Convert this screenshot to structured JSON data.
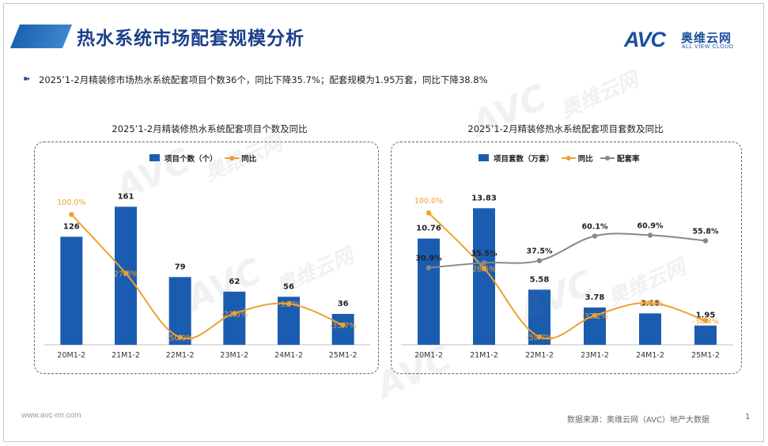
{
  "header": {
    "title": "热水系统市场配套规模分析",
    "summary": "2025’1-2月精装修市场热水系统配套项目个数36个，同比下降35.7%；配套规模为1.95万套，同比下降38.8%",
    "bullet_icon": "double-arrow-icon"
  },
  "logo": {
    "mark": "AVC",
    "cn": "奥维云网",
    "en": "ALL VIEW CLOUD"
  },
  "watermark": {
    "mark": "AVC",
    "cn": "奥维云网",
    "en": "ALL VIEW CLOUD"
  },
  "footer": {
    "website": "www.avc-mr.com",
    "source": "数据来源：奥维云网（AVC）地产大数据",
    "page": "1"
  },
  "colors": {
    "bar": "#1a5db0",
    "yoy": "#f0a030",
    "ratio": "#888888",
    "title": "#1a3f8a",
    "panel_border": "#4a6b8a"
  },
  "chart_data": [
    {
      "type": "bar",
      "title": "2025’1-2月精装修热水系统配套项目个数及同比",
      "categories": [
        "20M1-2",
        "21M1-2",
        "22M1-2",
        "23M1-2",
        "24M1-2",
        "25M1-2"
      ],
      "series": [
        {
          "name": "项目个数（个）",
          "kind": "bar",
          "values": [
            126,
            161,
            79,
            62,
            56,
            36
          ],
          "labels": [
            "126",
            "161",
            "79",
            "62",
            "56",
            "36"
          ]
        },
        {
          "name": "同比",
          "kind": "line",
          "values": [
            100.0,
            27.8,
            -50.9,
            -21.5,
            -9.7,
            -35.7
          ],
          "labels": [
            "100.0%",
            "27.8%",
            "-50.9%",
            "-21.5%",
            "-9.7%",
            "-35.7%"
          ]
        }
      ],
      "bar_ylim": [
        0,
        190
      ],
      "line_ylim": [
        -60,
        140
      ],
      "legend_position": "top"
    },
    {
      "type": "bar",
      "title": "2025’1-2月精装修热水系统配套项目套数及同比",
      "categories": [
        "20M1-2",
        "21M1-2",
        "22M1-2",
        "23M1-2",
        "24M1-2",
        "25M1-2"
      ],
      "series": [
        {
          "name": "项目套数（万套）",
          "kind": "bar",
          "values": [
            10.76,
            13.83,
            5.58,
            3.78,
            3.18,
            1.95
          ],
          "labels": [
            "10.76",
            "13.83",
            "5.58",
            "3.78",
            "3.18",
            "1.95"
          ]
        },
        {
          "name": "同比",
          "kind": "line",
          "values": [
            100.0,
            28.5,
            -59.7,
            -32.2,
            -16.0,
            -38.8
          ],
          "labels": [
            "100.0%",
            "28.5%",
            "-59.7%",
            "-32.2%",
            "-16.0%",
            "-38.8%"
          ]
        },
        {
          "name": "配套率",
          "kind": "line",
          "values": [
            30.9,
            35.5,
            37.5,
            60.1,
            60.9,
            55.8
          ],
          "labels": [
            "30.9%",
            "35.5%",
            "37.5%",
            "60.1%",
            "60.9%",
            "55.8%"
          ]
        }
      ],
      "bar_ylim": [
        0,
        16.5
      ],
      "line_ylim": [
        -70,
        140
      ],
      "ratio_ylim": [
        -40,
        110
      ],
      "legend_position": "top"
    }
  ]
}
